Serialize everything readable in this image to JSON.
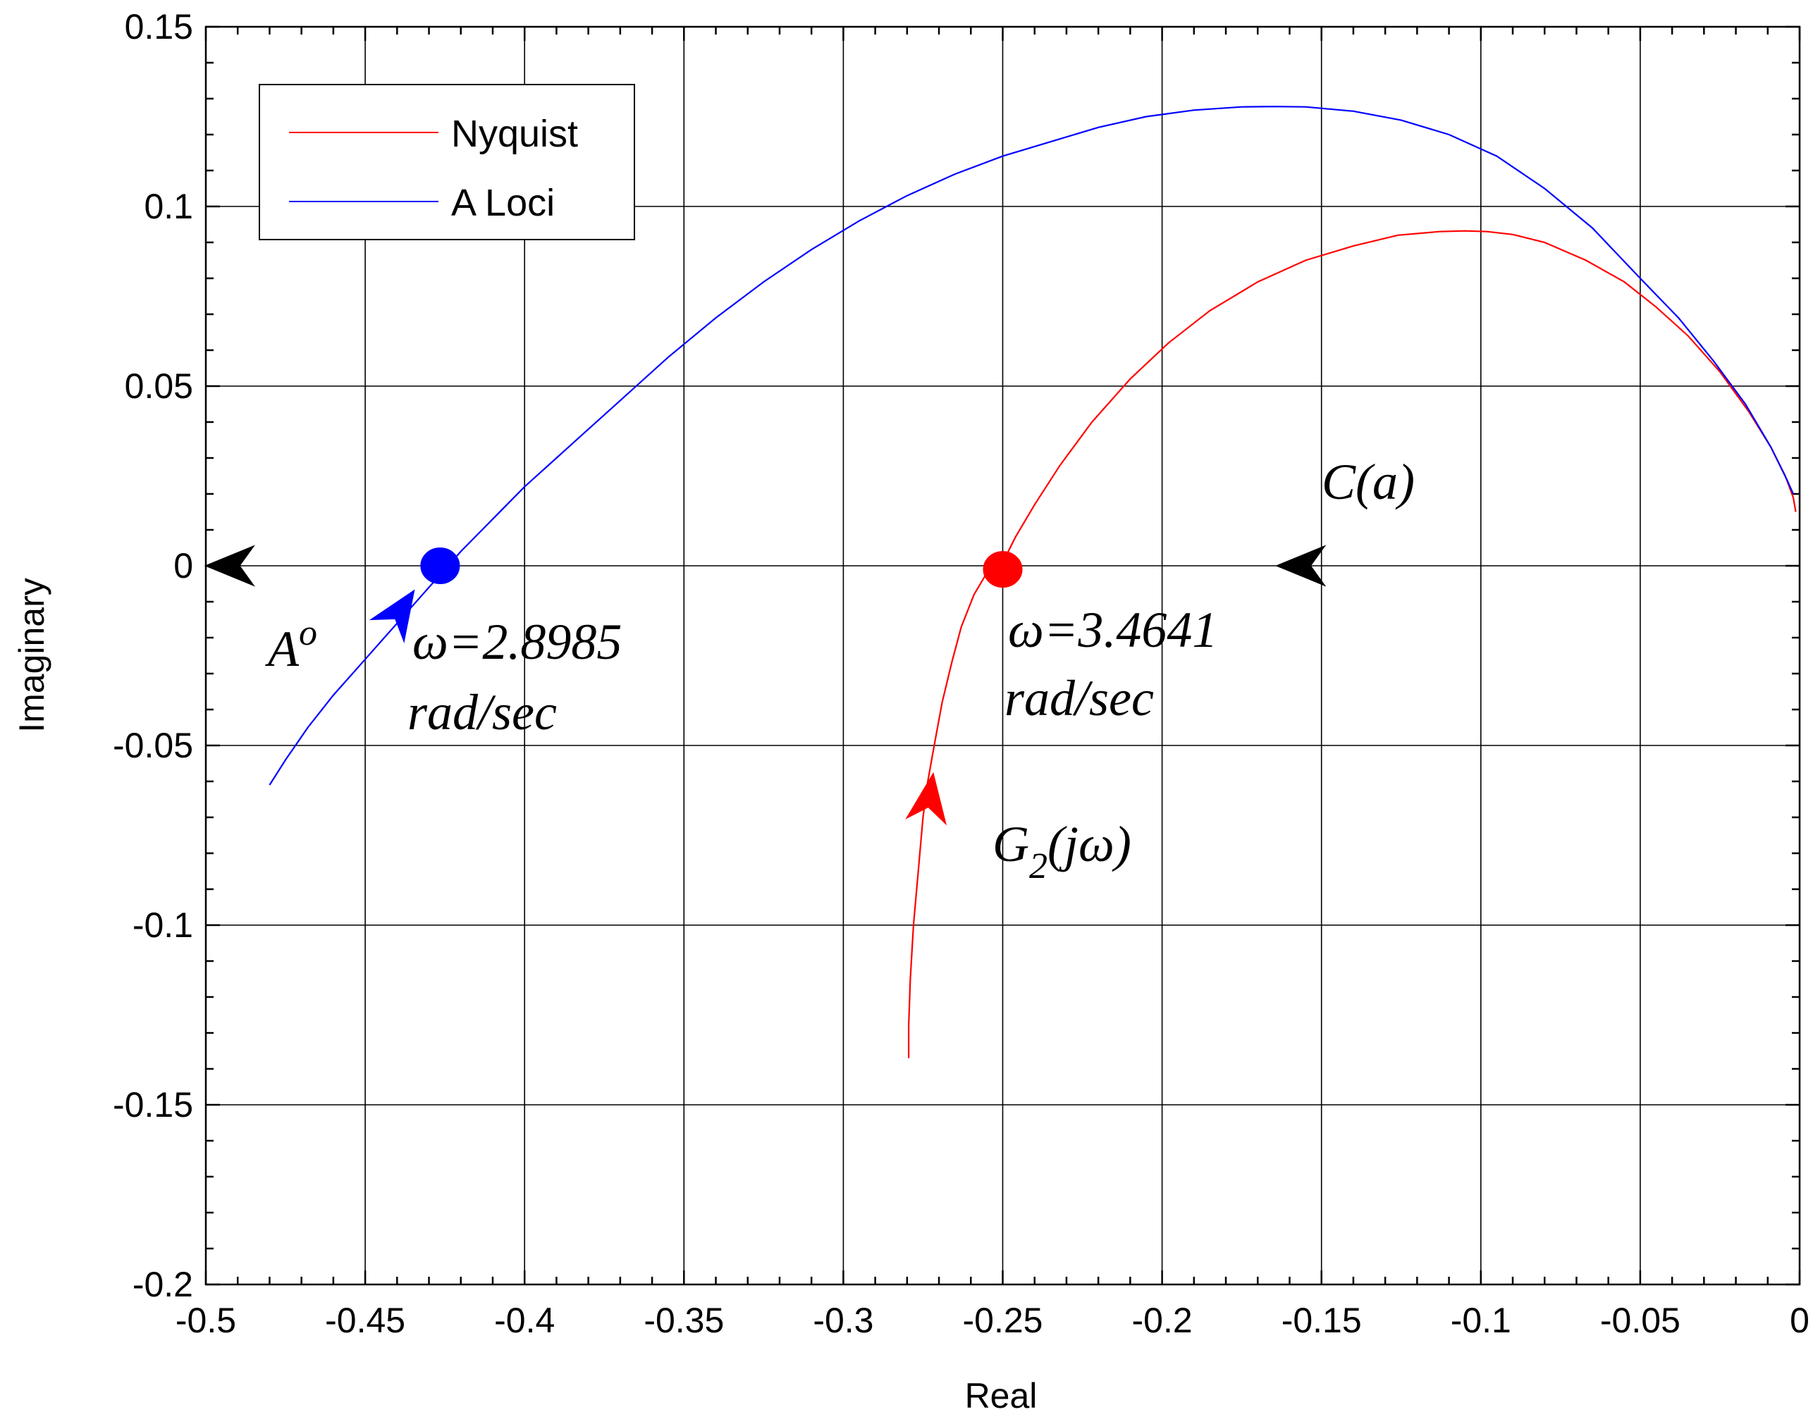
{
  "chart_data": {
    "type": "line",
    "title": "",
    "xlabel": "Real",
    "ylabel": "Imaginary",
    "xlim": [
      -0.5,
      0
    ],
    "ylim": [
      -0.2,
      0.15
    ],
    "grid": true,
    "legend_position": "top-left",
    "x_ticks": [
      "-0.5",
      "-0.45",
      "-0.4",
      "-0.35",
      "-0.3",
      "-0.25",
      "-0.2",
      "-0.15",
      "-0.1",
      "-0.05",
      "0"
    ],
    "y_ticks": [
      "0.15",
      "0.1",
      "0.05",
      "0",
      "-0.05",
      "-0.1",
      "-0.15",
      "-0.2"
    ],
    "series": [
      {
        "name": "Nyquist",
        "color": "#ff0000",
        "x": [
          -0.2795,
          -0.2795,
          -0.279,
          -0.278,
          -0.2765,
          -0.275,
          -0.2735,
          -0.2715,
          -0.269,
          -0.266,
          -0.263,
          -0.259,
          -0.255,
          -0.2505,
          -0.246,
          -0.24,
          -0.232,
          -0.222,
          -0.21,
          -0.198,
          -0.185,
          -0.17,
          -0.155,
          -0.14,
          -0.126,
          -0.113,
          -0.105,
          -0.098,
          -0.09,
          -0.08,
          -0.067,
          -0.055,
          -0.045,
          -0.035,
          -0.025,
          -0.016,
          -0.009,
          -0.0045,
          -0.002,
          -0.0012
        ],
        "y": [
          -0.137,
          -0.128,
          -0.115,
          -0.1,
          -0.085,
          -0.07,
          -0.06,
          -0.05,
          -0.038,
          -0.027,
          -0.017,
          -0.008,
          -0.002,
          0.0,
          0.008,
          0.017,
          0.028,
          0.04,
          0.052,
          0.062,
          0.071,
          0.079,
          0.085,
          0.089,
          0.092,
          0.093,
          0.0932,
          0.093,
          0.0922,
          0.09,
          0.085,
          0.079,
          0.072,
          0.064,
          0.054,
          0.043,
          0.033,
          0.025,
          0.019,
          0.015
        ]
      },
      {
        "name": "A Loci",
        "color": "#0000ff",
        "x": [
          -0.48,
          -0.475,
          -0.468,
          -0.46,
          -0.452,
          -0.445,
          -0.437,
          -0.43,
          -0.425,
          -0.42,
          -0.41,
          -0.4,
          -0.39,
          -0.38,
          -0.37,
          -0.355,
          -0.34,
          -0.325,
          -0.31,
          -0.295,
          -0.28,
          -0.265,
          -0.25,
          -0.235,
          -0.22,
          -0.205,
          -0.19,
          -0.175,
          -0.165,
          -0.155,
          -0.14,
          -0.125,
          -0.11,
          -0.095,
          -0.08,
          -0.065,
          -0.05,
          -0.038,
          -0.027,
          -0.017,
          -0.009,
          -0.004,
          -0.002
        ],
        "y": [
          -0.061,
          -0.054,
          -0.045,
          -0.036,
          -0.028,
          -0.021,
          -0.013,
          -0.006,
          -0.001,
          0.004,
          0.013,
          0.022,
          0.03,
          0.038,
          0.046,
          0.058,
          0.069,
          0.079,
          0.088,
          0.096,
          0.103,
          0.109,
          0.114,
          0.118,
          0.122,
          0.125,
          0.1268,
          0.1277,
          0.1278,
          0.1277,
          0.1265,
          0.124,
          0.12,
          0.114,
          0.105,
          0.094,
          0.08,
          0.069,
          0.057,
          0.045,
          0.033,
          0.024,
          0.02
        ]
      }
    ],
    "markers": [
      {
        "name": "A Loci crossing",
        "x": -0.4265,
        "y": 0,
        "color": "#0000ff"
      },
      {
        "name": "Nyquist crossing",
        "x": -0.25,
        "y": -0.001,
        "color": "#ff0000"
      }
    ],
    "direction_arrows": [
      {
        "name": "A Loci direction",
        "x": -0.443,
        "y": -0.018,
        "dx": 0.006,
        "dy": 0.008,
        "color": "#0000ff"
      },
      {
        "name": "Nyquist direction",
        "x": -0.274,
        "y": -0.071,
        "dx": 0.0015,
        "dy": 0.009,
        "color": "#ff0000"
      },
      {
        "name": "C(a) direction left",
        "x": -0.149,
        "y": 0,
        "dx": -0.016,
        "dy": 0,
        "color": "#000000"
      },
      {
        "name": "Ao direction left",
        "x": -0.485,
        "y": 0,
        "dx": -0.016,
        "dy": 0,
        "color": "#000000"
      }
    ],
    "annotations": {
      "a_label": "A",
      "a_sup": "o",
      "omega1": "ω=2.8985",
      "unit1": "rad/sec",
      "omega2": "ω=3.4641",
      "unit2": "rad/sec",
      "ca_label": "C(a)",
      "g_label_g": "G",
      "g_label_sub": "2",
      "g_label_rest": "(jω)"
    }
  }
}
